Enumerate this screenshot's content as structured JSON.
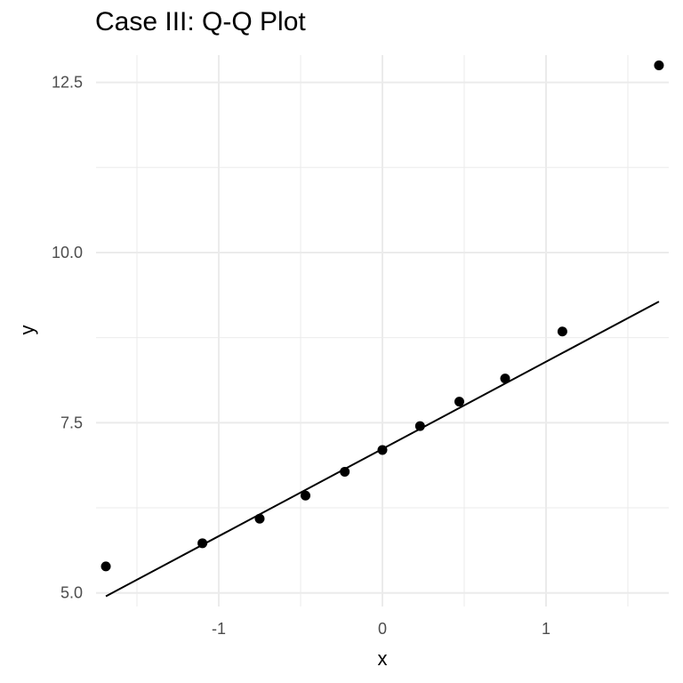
{
  "chart_data": {
    "type": "scatter",
    "title": "Case III: Q-Q Plot",
    "xlabel": "x",
    "ylabel": "y",
    "xlim": [
      -1.75,
      1.75
    ],
    "ylim": [
      4.8,
      12.9
    ],
    "grid": true,
    "x_ticks": [
      -1,
      0,
      1
    ],
    "x_tick_labels": [
      "-1",
      "0",
      "1"
    ],
    "x_minor_ticks": [
      -1.5,
      -0.5,
      0.5,
      1.5
    ],
    "y_ticks": [
      5.0,
      7.5,
      10.0,
      12.5
    ],
    "y_tick_labels": [
      "5.0",
      "7.5",
      "10.0",
      "12.5"
    ],
    "y_minor_ticks": [
      6.25,
      8.75,
      11.25
    ],
    "points": [
      {
        "x": -1.69,
        "y": 5.39
      },
      {
        "x": -1.1,
        "y": 5.73
      },
      {
        "x": -0.75,
        "y": 6.09
      },
      {
        "x": -0.47,
        "y": 6.43
      },
      {
        "x": -0.23,
        "y": 6.78
      },
      {
        "x": 0.0,
        "y": 7.1
      },
      {
        "x": 0.23,
        "y": 7.45
      },
      {
        "x": 0.47,
        "y": 7.81
      },
      {
        "x": 0.75,
        "y": 8.15
      },
      {
        "x": 1.1,
        "y": 8.84
      },
      {
        "x": 1.69,
        "y": 12.75
      }
    ],
    "reference_line": {
      "x": [
        -1.69,
        1.69
      ],
      "y": [
        4.95,
        9.28
      ]
    },
    "point_color": "#000000",
    "line_color": "#000000",
    "grid_color": "#ebebeb"
  }
}
